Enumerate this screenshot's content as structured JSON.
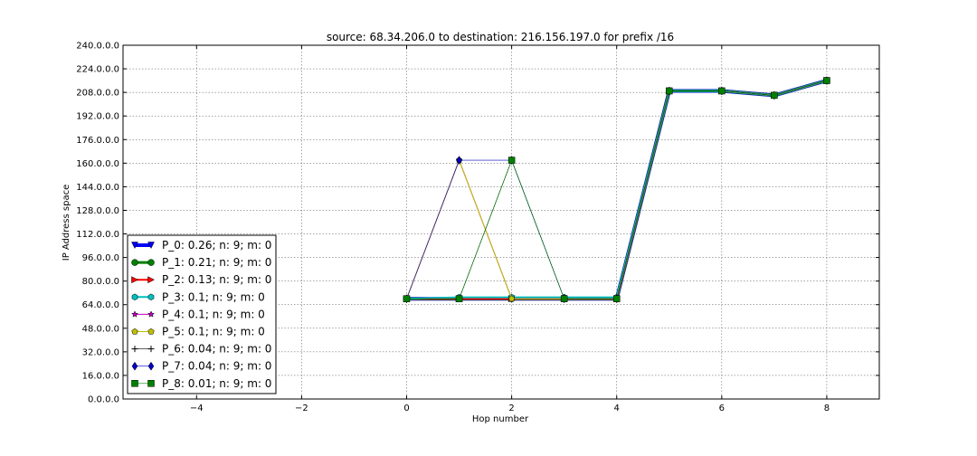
{
  "chart_data": {
    "type": "line",
    "title": "source: 68.34.206.0 to destination: 216.156.197.0 for prefix /16",
    "xlabel": "Hop number",
    "ylabel": "IP Address space",
    "xlim": [
      -5.4,
      9
    ],
    "ylim": [
      0,
      240
    ],
    "x_ticks": [
      -4,
      -2,
      0,
      2,
      4,
      6,
      8
    ],
    "x_tick_labels": [
      "−4",
      "−2",
      "0",
      "2",
      "4",
      "6",
      "8"
    ],
    "y_ticks": [
      0,
      16,
      32,
      48,
      64,
      80,
      96,
      112,
      128,
      144,
      160,
      176,
      192,
      208,
      224,
      240
    ],
    "y_tick_labels": [
      "0.0.0.0",
      "16.0.0.0",
      "32.0.0.0",
      "48.0.0.0",
      "64.0.0.0",
      "80.0.0.0",
      "96.0.0.0",
      "112.0.0.0",
      "128.0.0.0",
      "144.0.0.0",
      "160.0.0.0",
      "176.0.0.0",
      "192.0.0.0",
      "208.0.0.0",
      "224.0.0.0",
      "240.0.0.0"
    ],
    "grid": true,
    "legend_position": "lower-left",
    "x": [
      0,
      1,
      2,
      3,
      4,
      5,
      6,
      7,
      8
    ],
    "series": [
      {
        "name": "P_0: 0.26; n: 9; m: 0",
        "color": "#0000ff",
        "marker": "triangle-down",
        "linewidth": 4,
        "values": [
          68,
          68,
          68,
          68,
          68,
          209,
          209,
          206,
          216
        ]
      },
      {
        "name": "P_1: 0.21; n: 9; m: 0",
        "color": "#008000",
        "marker": "circle",
        "linewidth": 3,
        "values": [
          68,
          68,
          68,
          68,
          68,
          209,
          209,
          206,
          216
        ]
      },
      {
        "name": "P_2: 0.13; n: 9; m: 0",
        "color": "#ff0000",
        "marker": "triangle-right",
        "linewidth": 2,
        "values": [
          68,
          68,
          68,
          68,
          68,
          209,
          209,
          206,
          216
        ]
      },
      {
        "name": "P_3: 0.1; n: 9; m: 0",
        "color": "#00bfbf",
        "marker": "hexagon",
        "linewidth": 2,
        "values": [
          68,
          69,
          69,
          69,
          69,
          209,
          209,
          206,
          216
        ]
      },
      {
        "name": "P_4: 0.1; n: 9; m: 0",
        "color": "#bf00bf",
        "marker": "star",
        "linewidth": 1,
        "values": [
          68,
          162,
          68,
          68,
          68,
          209,
          209,
          206,
          216
        ]
      },
      {
        "name": "P_5: 0.1; n: 9; m: 0",
        "color": "#bfbf00",
        "marker": "pentagon",
        "linewidth": 1,
        "values": [
          68,
          162,
          68,
          68,
          68,
          209,
          209,
          206,
          216
        ]
      },
      {
        "name": "P_6: 0.04; n: 9; m: 0",
        "color": "#000000",
        "marker": "plus",
        "linewidth": 0.6,
        "values": [
          68,
          68,
          162,
          68,
          68,
          209,
          209,
          206,
          216
        ]
      },
      {
        "name": "P_7: 0.04; n: 9; m: 0",
        "color": "#0000bf",
        "marker": "diamond",
        "linewidth": 0.6,
        "values": [
          68,
          162,
          162,
          68,
          68,
          209,
          209,
          206,
          216
        ]
      },
      {
        "name": "P_8: 0.01; n: 9; m: 0",
        "color": "#008000",
        "marker": "square",
        "linewidth": 0.6,
        "values": [
          68,
          68,
          162,
          68,
          68,
          209,
          209,
          206,
          216
        ]
      }
    ]
  }
}
